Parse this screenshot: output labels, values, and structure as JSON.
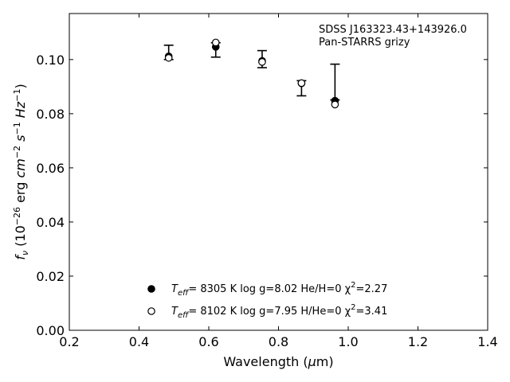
{
  "chart_data": {
    "type": "scatter",
    "title": "",
    "xlabel": "Wavelength (μm)",
    "ylabel": "fν (10⁻²⁶ erg cm⁻² s⁻¹ Hz⁻¹)",
    "xlim": [
      0.2,
      1.4
    ],
    "ylim": [
      0.0,
      0.117
    ],
    "grid": false,
    "legend_position": "bottom-center",
    "x_ticks": [
      0.2,
      0.4,
      0.6,
      0.8,
      1.0,
      1.2,
      1.4
    ],
    "x_tick_labels": [
      "0.2",
      "0.4",
      "0.6",
      "0.8",
      "1.0",
      "1.2",
      "1.4"
    ],
    "y_ticks": [
      0.0,
      0.02,
      0.04,
      0.06,
      0.08,
      0.1
    ],
    "y_tick_labels": [
      "0.00",
      "0.02",
      "0.04",
      "0.06",
      "0.08",
      "0.10"
    ],
    "annotations": [
      "SDSS J163323.43+143926.0",
      "Pan-STARRS grizy"
    ],
    "observed": {
      "x": [
        0.485,
        0.62,
        0.753,
        0.866,
        0.962
      ],
      "y": [
        0.1018,
        0.1049,
        0.0993,
        0.0907,
        0.085
      ],
      "err_low": [
        0.1,
        0.1009,
        0.097,
        0.0866,
        0.0851
      ],
      "err_high": [
        0.1053,
        0.1062,
        0.1033,
        0.0922,
        0.0983
      ]
    },
    "series": [
      {
        "name": "T_eff= 8305 K log g=8.02 He/H=0 χ²=2.27",
        "marker": "filled-circle",
        "x": [
          0.485,
          0.62,
          0.753,
          0.866,
          0.962
        ],
        "y": [
          0.1012,
          0.1047,
          0.0995,
          0.0912,
          0.0848
        ]
      },
      {
        "name": "T_eff= 8102 K log g=7.95 H/He=0 χ²=3.41",
        "marker": "open-circle",
        "x": [
          0.485,
          0.62,
          0.753,
          0.866,
          0.962
        ],
        "y": [
          0.1006,
          0.1063,
          0.0991,
          0.0913,
          0.0834
        ]
      }
    ],
    "legend": [
      {
        "marker": "filled-circle",
        "t_label": "T",
        "t_sub": "eff",
        "rest": "=  8305 K  log g=8.02  He/H=0  χ",
        "chi_sup": "2",
        "chi_val": "=2.27"
      },
      {
        "marker": "open-circle",
        "t_label": "T",
        "t_sub": "eff",
        "rest": "=  8102 K  log g=7.95  H/He=0  χ",
        "chi_sup": "2",
        "chi_val": "=3.41"
      }
    ],
    "axis_label_parts": {
      "x_main": "Wavelength (",
      "x_unit_mu": "μ",
      "x_unit_rest": "m)",
      "y_f": "f",
      "y_nu": "ν",
      "y_open": " (10",
      "y_exp1": "−26",
      "y_erg": " erg ",
      "y_cm": "cm",
      "y_exp2": "−2",
      "y_s": " s",
      "y_exp3": "−1",
      "y_hz": " Hz",
      "y_exp4": "−1",
      "y_close": ")"
    }
  }
}
